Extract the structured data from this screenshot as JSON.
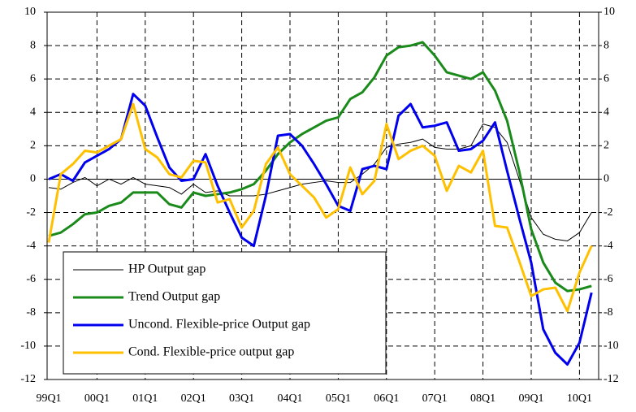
{
  "chart_data": {
    "type": "line",
    "categories": [
      "99Q1",
      null,
      null,
      null,
      "00Q1",
      null,
      null,
      null,
      "01Q1",
      null,
      null,
      null,
      "02Q1",
      null,
      null,
      null,
      "03Q1",
      null,
      null,
      null,
      "04Q1",
      null,
      null,
      null,
      "05Q1",
      null,
      null,
      null,
      "06Q1",
      null,
      null,
      null,
      "07Q1",
      null,
      null,
      null,
      "08Q1",
      null,
      null,
      null,
      "09Q1",
      null,
      null,
      null,
      "10Q1",
      null
    ],
    "series": [
      {
        "name": "HP Output gap",
        "color": "#000000",
        "width": 1,
        "values": [
          -0.5,
          -0.6,
          -0.2,
          0.1,
          -0.4,
          0.0,
          -0.3,
          0.1,
          -0.3,
          -0.4,
          -0.5,
          -0.9,
          -0.3,
          -0.8,
          -0.7,
          -1.0,
          -1.0,
          -1.0,
          -0.9,
          -0.7,
          -0.5,
          -0.3,
          -0.2,
          -0.1,
          -0.2,
          -0.2,
          0.3,
          0.9,
          1.9,
          2.1,
          2.2,
          2.4,
          1.9,
          1.8,
          1.8,
          2.0,
          3.3,
          3.1,
          2.2,
          0.0,
          -2.3,
          -3.3,
          -3.6,
          -3.7,
          -3.2,
          -2.0
        ]
      },
      {
        "name": "Trend Output gap",
        "color": "#1a8a1a",
        "width": 3,
        "values": [
          -3.4,
          -3.2,
          -2.7,
          -2.1,
          -2.0,
          -1.6,
          -1.4,
          -0.8,
          -0.8,
          -0.8,
          -1.5,
          -1.7,
          -0.8,
          -1.0,
          -0.9,
          -0.8,
          -0.6,
          -0.3,
          0.5,
          1.5,
          2.2,
          2.7,
          3.1,
          3.5,
          3.7,
          4.8,
          5.2,
          6.1,
          7.4,
          7.9,
          8.0,
          8.2,
          7.4,
          6.4,
          6.2,
          6.0,
          6.4,
          5.3,
          3.5,
          0.5,
          -3.0,
          -5.0,
          -6.2,
          -6.7,
          -6.6,
          -6.4
        ]
      },
      {
        "name": "Uncond. Flexible-price Output gap",
        "color": "#0000ee",
        "width": 3,
        "values": [
          0.0,
          0.3,
          -0.1,
          1.0,
          1.4,
          1.8,
          2.4,
          5.1,
          4.4,
          2.5,
          0.7,
          -0.1,
          0.0,
          1.5,
          -0.4,
          -2.0,
          -3.5,
          -4.0,
          -1.0,
          2.6,
          2.7,
          2.0,
          0.9,
          -0.3,
          -1.6,
          -1.9,
          0.6,
          0.8,
          0.6,
          3.8,
          4.5,
          3.1,
          3.2,
          3.4,
          1.7,
          1.8,
          2.3,
          3.4,
          0.5,
          -2.3,
          -5.0,
          -9.0,
          -10.4,
          -11.1,
          -9.8,
          -6.8
        ]
      },
      {
        "name": "Cond. Flexible-price output gap",
        "color": "#ffc000",
        "width": 3,
        "values": [
          -3.8,
          0.3,
          0.9,
          1.7,
          1.6,
          2.0,
          2.4,
          4.5,
          1.8,
          1.3,
          0.3,
          0.1,
          1.1,
          1.0,
          -1.4,
          -1.2,
          -2.9,
          -1.9,
          0.9,
          1.9,
          0.3,
          -0.4,
          -1.1,
          -2.3,
          -1.8,
          0.7,
          -0.9,
          -0.1,
          3.3,
          1.2,
          1.7,
          2.0,
          1.4,
          -0.7,
          0.8,
          0.4,
          1.7,
          -2.8,
          -2.9,
          -4.9,
          -7.0,
          -6.6,
          -6.5,
          -7.9,
          -5.6,
          -4.0
        ]
      }
    ],
    "ylim": [
      -12,
      10
    ],
    "yticks": [
      -12,
      -10,
      -8,
      -6,
      -4,
      -2,
      0,
      2,
      4,
      6,
      8,
      10
    ],
    "y2lim": [
      -12,
      10
    ],
    "y2ticks": [
      -12,
      -10,
      -8,
      -6,
      -4,
      -2,
      0,
      2,
      4,
      6,
      8,
      10
    ],
    "grid": true,
    "legend": "lower left"
  }
}
